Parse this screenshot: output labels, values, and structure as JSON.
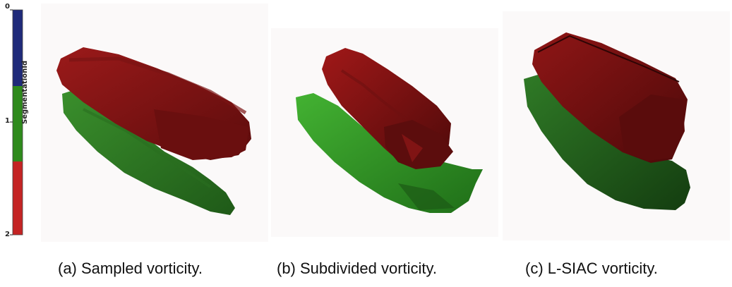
{
  "colorbar": {
    "title": "SegmentationId",
    "ticks": [
      "0",
      "1",
      "2"
    ],
    "colors": [
      "#1f2a7a",
      "#2e8a1c",
      "#c42424"
    ]
  },
  "panels": [
    {
      "caption": "(a) Sampled vorticity."
    },
    {
      "caption": "(b) Subdivided vorticity."
    },
    {
      "caption": "(c) L-SIAC vorticity."
    }
  ]
}
